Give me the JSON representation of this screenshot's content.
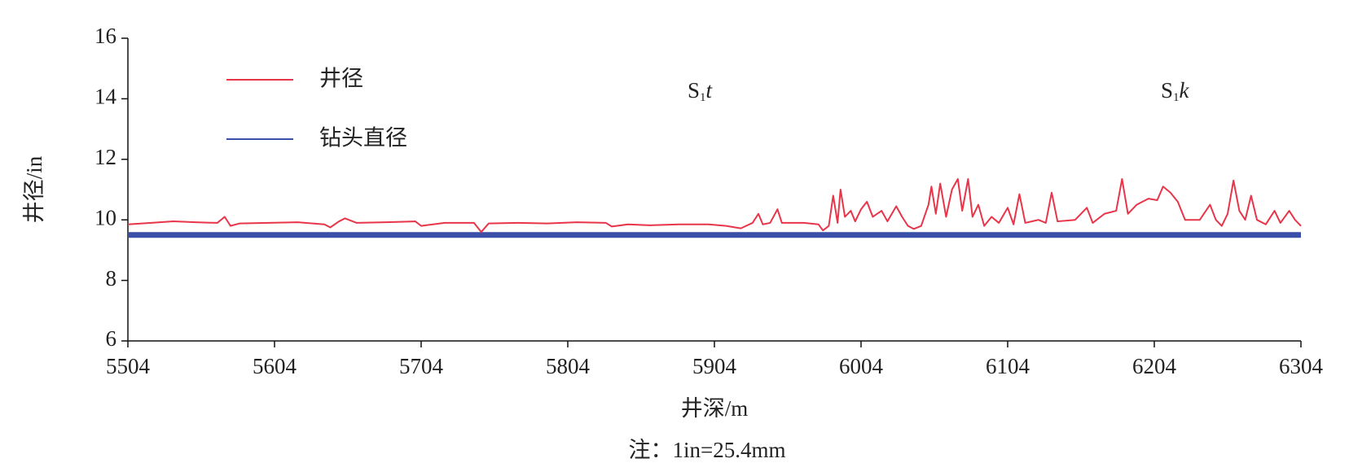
{
  "chart_data": {
    "type": "line",
    "xlabel": "井深/m",
    "ylabel": "井径/in",
    "note": "注：1in=25.4mm",
    "xlim": [
      5504,
      6304
    ],
    "xticks": [
      5504,
      5604,
      5704,
      5804,
      5904,
      6004,
      6104,
      6204,
      6304
    ],
    "ylim": [
      6,
      16
    ],
    "yticks": [
      6,
      8,
      10,
      12,
      14,
      16
    ],
    "legend": "upper left",
    "annotations": [
      {
        "text": "S",
        "sub": "1",
        "italic": "t",
        "x": 5894,
        "y": 14.2
      },
      {
        "text": "S",
        "sub": "1",
        "italic": "k",
        "x": 6218,
        "y": 14.2
      }
    ],
    "series": [
      {
        "name": "井径",
        "color": "#e8354a",
        "x": [
          5504,
          5520,
          5535,
          5550,
          5565,
          5570,
          5574,
          5580,
          5600,
          5620,
          5638,
          5642,
          5648,
          5652,
          5660,
          5680,
          5700,
          5704,
          5720,
          5740,
          5745,
          5750,
          5770,
          5790,
          5810,
          5830,
          5834,
          5845,
          5860,
          5880,
          5900,
          5912,
          5922,
          5930,
          5934,
          5937,
          5942,
          5947,
          5950,
          5965,
          5975,
          5978,
          5982,
          5985,
          5988,
          5990,
          5993,
          5997,
          6000,
          6004,
          6008,
          6012,
          6018,
          6022,
          6028,
          6032,
          6036,
          6040,
          6045,
          6050,
          6052,
          6055,
          6058,
          6062,
          6066,
          6070,
          6073,
          6077,
          6080,
          6084,
          6088,
          6093,
          6098,
          6104,
          6108,
          6112,
          6116,
          6125,
          6130,
          6134,
          6138,
          6150,
          6158,
          6162,
          6170,
          6178,
          6182,
          6186,
          6192,
          6200,
          6206,
          6210,
          6215,
          6220,
          6225,
          6235,
          6242,
          6246,
          6250,
          6254,
          6258,
          6262,
          6266,
          6270,
          6274,
          6280,
          6286,
          6290,
          6296,
          6300,
          6304
        ],
        "values": [
          9.85,
          9.9,
          9.95,
          9.92,
          9.9,
          10.1,
          9.8,
          9.88,
          9.9,
          9.92,
          9.85,
          9.75,
          9.95,
          10.05,
          9.9,
          9.92,
          9.95,
          9.8,
          9.9,
          9.9,
          9.6,
          9.88,
          9.9,
          9.88,
          9.92,
          9.9,
          9.78,
          9.85,
          9.82,
          9.85,
          9.85,
          9.8,
          9.72,
          9.9,
          10.2,
          9.85,
          9.9,
          10.35,
          9.9,
          9.9,
          9.85,
          9.65,
          9.8,
          10.8,
          9.9,
          11.0,
          10.1,
          10.3,
          9.95,
          10.35,
          10.6,
          10.1,
          10.3,
          9.95,
          10.45,
          10.1,
          9.8,
          9.7,
          9.8,
          10.5,
          11.1,
          10.2,
          11.2,
          10.1,
          11.0,
          11.35,
          10.3,
          11.35,
          10.1,
          10.5,
          9.8,
          10.1,
          9.9,
          10.4,
          9.85,
          10.85,
          9.9,
          10.0,
          9.9,
          10.9,
          9.95,
          10.0,
          10.4,
          9.9,
          10.2,
          10.3,
          11.35,
          10.2,
          10.5,
          10.7,
          10.65,
          11.1,
          10.9,
          10.6,
          10.0,
          10.0,
          10.5,
          10.0,
          9.8,
          10.2,
          11.3,
          10.3,
          10.0,
          10.8,
          10.0,
          9.85,
          10.3,
          9.9,
          10.3,
          10.0,
          9.8
        ]
      },
      {
        "name": "钻头直径",
        "color": "#3a4fa8",
        "x": [
          5504,
          6304
        ],
        "values": [
          9.5,
          9.5
        ]
      }
    ]
  }
}
